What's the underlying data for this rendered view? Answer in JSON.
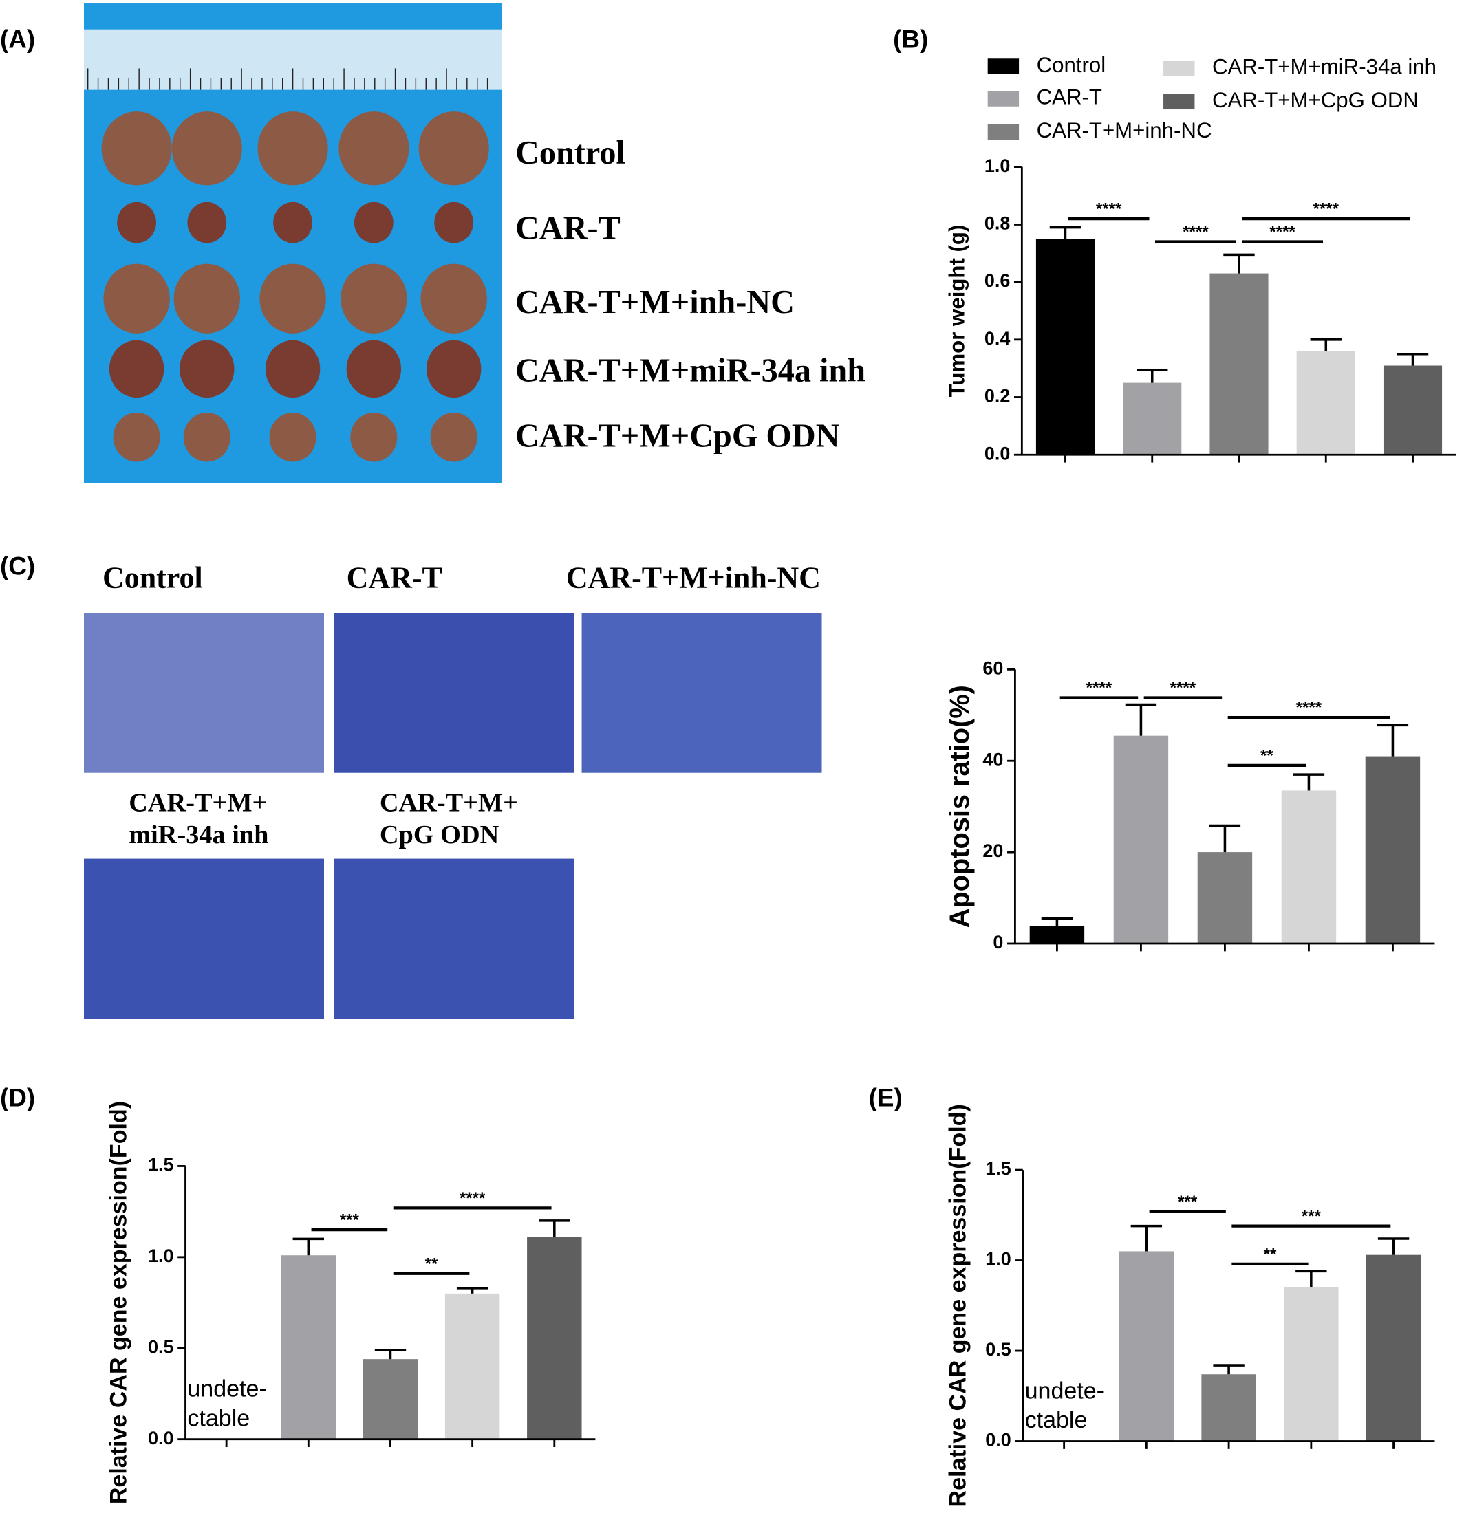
{
  "panel_labels": [
    "(A)",
    "(B)",
    "(C)",
    "(D)",
    "(E)"
  ],
  "photo_a": {
    "row_labels": [
      "Control",
      "CAR-T",
      "CAR-T+M+inh-NC",
      "CAR-T+M+miR-34a inh",
      "CAR-T+M+CpG ODN"
    ]
  },
  "photo_c": {
    "labels": [
      [
        "Control"
      ],
      [
        "CAR-T"
      ],
      [
        "CAR-T+M+inh-NC"
      ],
      [
        "CAR-T+M+",
        "miR-34a inh"
      ],
      [
        "CAR-T+M+",
        "CpG ODN"
      ]
    ]
  },
  "chart_data": [
    {
      "type": "bar",
      "ylabel": "Tumor weight (g)",
      "legend": true,
      "categories": [
        "Control",
        "CAR-T",
        "CAR-T+M+inh-NC",
        "CAR-T+M+miR-34a inh",
        "CAR-T+M+CpG ODN"
      ],
      "colors": [
        "#000000",
        "#a2a2a6",
        "#7f7f7f",
        "#d6d6d6",
        "#5f5f5f"
      ],
      "values": [
        0.75,
        0.25,
        0.63,
        0.36,
        0.31
      ],
      "errors": [
        0.04,
        0.045,
        0.065,
        0.04,
        0.04
      ],
      "ylim": [
        0,
        1
      ],
      "yticks": [
        {
          "value": 0,
          "label": "0.0"
        },
        0.2,
        0.4,
        0.6,
        0.8,
        {
          "value": 1,
          "label": "1.0"
        }
      ],
      "significance": [
        {
          "label": "****",
          "from": 0,
          "to": 1,
          "y": 0.82
        },
        {
          "label": "****",
          "from": 1,
          "to": 2,
          "y": 0.74
        },
        {
          "label": "****",
          "from": 2,
          "to": 3,
          "y": 0.74
        },
        {
          "label": "****",
          "from": 2,
          "to": 4,
          "y": 0.82
        }
      ]
    },
    {
      "type": "bar",
      "ylabel": "Apoptosis ratio(%)",
      "legend": false,
      "categories": [
        "Control",
        "CAR-T",
        "CAR-T+M+inh-NC",
        "CAR-T+M+miR-34a inh",
        "CAR-T+M+CpG ODN"
      ],
      "colors": [
        "#000000",
        "#a2a2a6",
        "#7f7f7f",
        "#d6d6d6",
        "#5f5f5f"
      ],
      "values": [
        3.8,
        45.5,
        20,
        33.5,
        41
      ],
      "errors": [
        1.7,
        6.8,
        5.8,
        3.5,
        6.8
      ],
      "ylim": [
        0,
        60
      ],
      "yticks": [
        0,
        20,
        40,
        60
      ],
      "significance": [
        {
          "label": "****",
          "from": 0,
          "to": 1,
          "y": 53.8
        },
        {
          "label": "****",
          "from": 1,
          "to": 2,
          "y": 53.8
        },
        {
          "label": "****",
          "from": 2,
          "to": 4,
          "y": 49.5
        },
        {
          "label": "**",
          "from": 2,
          "to": 3,
          "y": 39
        }
      ]
    },
    {
      "type": "bar",
      "ylabel": "Relative CAR gene expression(Fold)",
      "legend": false,
      "categories": [
        "Control",
        "CAR-T",
        "CAR-T+M+inh-NC",
        "CAR-T+M+miR-34a inh",
        "CAR-T+M+CpG ODN"
      ],
      "colors": [
        "#000000",
        "#a2a2a6",
        "#7f7f7f",
        "#d6d6d6",
        "#5f5f5f"
      ],
      "values": [
        null,
        1.01,
        0.44,
        0.8,
        1.11
      ],
      "errors": [
        null,
        0.09,
        0.05,
        0.03,
        0.09
      ],
      "annotation": [
        "undete-",
        "ctable"
      ],
      "ylim": [
        0,
        1.5
      ],
      "yticks": [
        {
          "value": 0,
          "label": "0.0"
        },
        0.5,
        {
          "value": 1,
          "label": "1.0"
        },
        1.5
      ],
      "significance": [
        {
          "label": "***",
          "from": 1,
          "to": 2,
          "y": 1.15
        },
        {
          "label": "****",
          "from": 2,
          "to": 4,
          "y": 1.27
        },
        {
          "label": "**",
          "from": 2,
          "to": 3,
          "y": 0.91
        }
      ]
    },
    {
      "type": "bar",
      "ylabel": "Relative CAR gene expression(Fold)",
      "legend": false,
      "categories": [
        "Control",
        "CAR-T",
        "CAR-T+M+inh-NC",
        "CAR-T+M+miR-34a inh",
        "CAR-T+M+CpG ODN"
      ],
      "colors": [
        "#000000",
        "#a2a2a6",
        "#7f7f7f",
        "#d6d6d6",
        "#5f5f5f"
      ],
      "values": [
        null,
        1.05,
        0.37,
        0.85,
        1.03
      ],
      "errors": [
        null,
        0.14,
        0.05,
        0.09,
        0.09
      ],
      "annotation": [
        "undete-",
        "ctable"
      ],
      "ylim": [
        0,
        1.5
      ],
      "yticks": [
        {
          "value": 0,
          "label": "0.0"
        },
        0.5,
        {
          "value": 1,
          "label": "1.0"
        },
        1.5
      ],
      "significance": [
        {
          "label": "***",
          "from": 1,
          "to": 2,
          "y": 1.27
        },
        {
          "label": "***",
          "from": 2,
          "to": 4,
          "y": 1.19
        },
        {
          "label": "**",
          "from": 2,
          "to": 3,
          "y": 0.98
        }
      ]
    }
  ]
}
